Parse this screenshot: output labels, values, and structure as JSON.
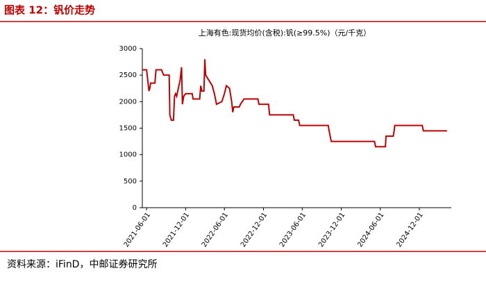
{
  "header": {
    "title": "图表 12：钒价走势"
  },
  "chart_data": {
    "type": "line",
    "title": "上海有色:现货均价(含税):钒(≥99.5%)（元/千克）",
    "x": [
      "2021-05-14",
      "2021-06-01",
      "2021-06-08",
      "2021-06-12",
      "2021-06-16",
      "2021-06-20",
      "2021-07-10",
      "2021-07-15",
      "2021-08-10",
      "2021-08-15",
      "2021-08-20",
      "2021-09-15",
      "2021-09-18",
      "2021-09-25",
      "2021-10-05",
      "2021-10-10",
      "2021-10-15",
      "2021-10-20",
      "2021-10-25",
      "2021-11-05",
      "2021-11-12",
      "2021-11-16",
      "2021-11-22",
      "2021-12-01",
      "2022-01-01",
      "2022-01-05",
      "2022-02-05",
      "2022-02-10",
      "2022-02-15",
      "2022-02-25",
      "2022-03-01",
      "2022-03-05",
      "2022-04-05",
      "2022-04-15",
      "2022-04-25",
      "2022-05-20",
      "2022-06-01",
      "2022-06-10",
      "2022-06-25",
      "2022-07-05",
      "2022-07-10",
      "2022-07-15",
      "2022-08-10",
      "2022-08-15",
      "2022-09-01",
      "2022-11-05",
      "2022-11-10",
      "2022-12-25",
      "2022-12-30",
      "2023-04-20",
      "2023-04-25",
      "2023-05-15",
      "2023-05-20",
      "2023-10-01",
      "2023-10-05",
      "2023-10-10",
      "2023-10-15",
      "2024-05-05",
      "2024-05-10",
      "2024-06-25",
      "2024-06-28",
      "2024-08-01",
      "2024-08-05",
      "2024-08-08",
      "2024-12-15",
      "2024-12-20",
      "2025-04-10"
    ],
    "series": [
      {
        "name": "钒",
        "color": "#c00000",
        "values": [
          2600,
          2600,
          2350,
          2200,
          2250,
          2350,
          2350,
          2600,
          2600,
          2550,
          2500,
          2500,
          1750,
          1650,
          1650,
          2100,
          2150,
          2100,
          2200,
          2400,
          2650,
          1950,
          2100,
          2150,
          2150,
          2050,
          2050,
          2300,
          2200,
          2200,
          2800,
          2500,
          2300,
          2150,
          1950,
          2000,
          2150,
          2300,
          2250,
          2000,
          1800,
          1900,
          1900,
          1950,
          2050,
          2050,
          1950,
          1950,
          1750,
          1750,
          1650,
          1650,
          1550,
          1550,
          1450,
          1350,
          1250,
          1250,
          1150,
          1150,
          1350,
          1350,
          1450,
          1550,
          1550,
          1450,
          1450
        ]
      }
    ],
    "xlim": [
      "2021-05-12",
      "2025-04-30"
    ],
    "xticks": [
      "2021-06-01",
      "2021-12-01",
      "2022-06-01",
      "2022-12-01",
      "2023-06-01",
      "2023-12-01",
      "2024-06-01",
      "2024-12-01"
    ],
    "ylim": [
      0,
      3000
    ],
    "yticks": [
      0,
      500,
      1000,
      1500,
      2000,
      2500,
      3000
    ]
  },
  "footer": {
    "source": "资料来源：iFinD，中邮证券研究所"
  }
}
